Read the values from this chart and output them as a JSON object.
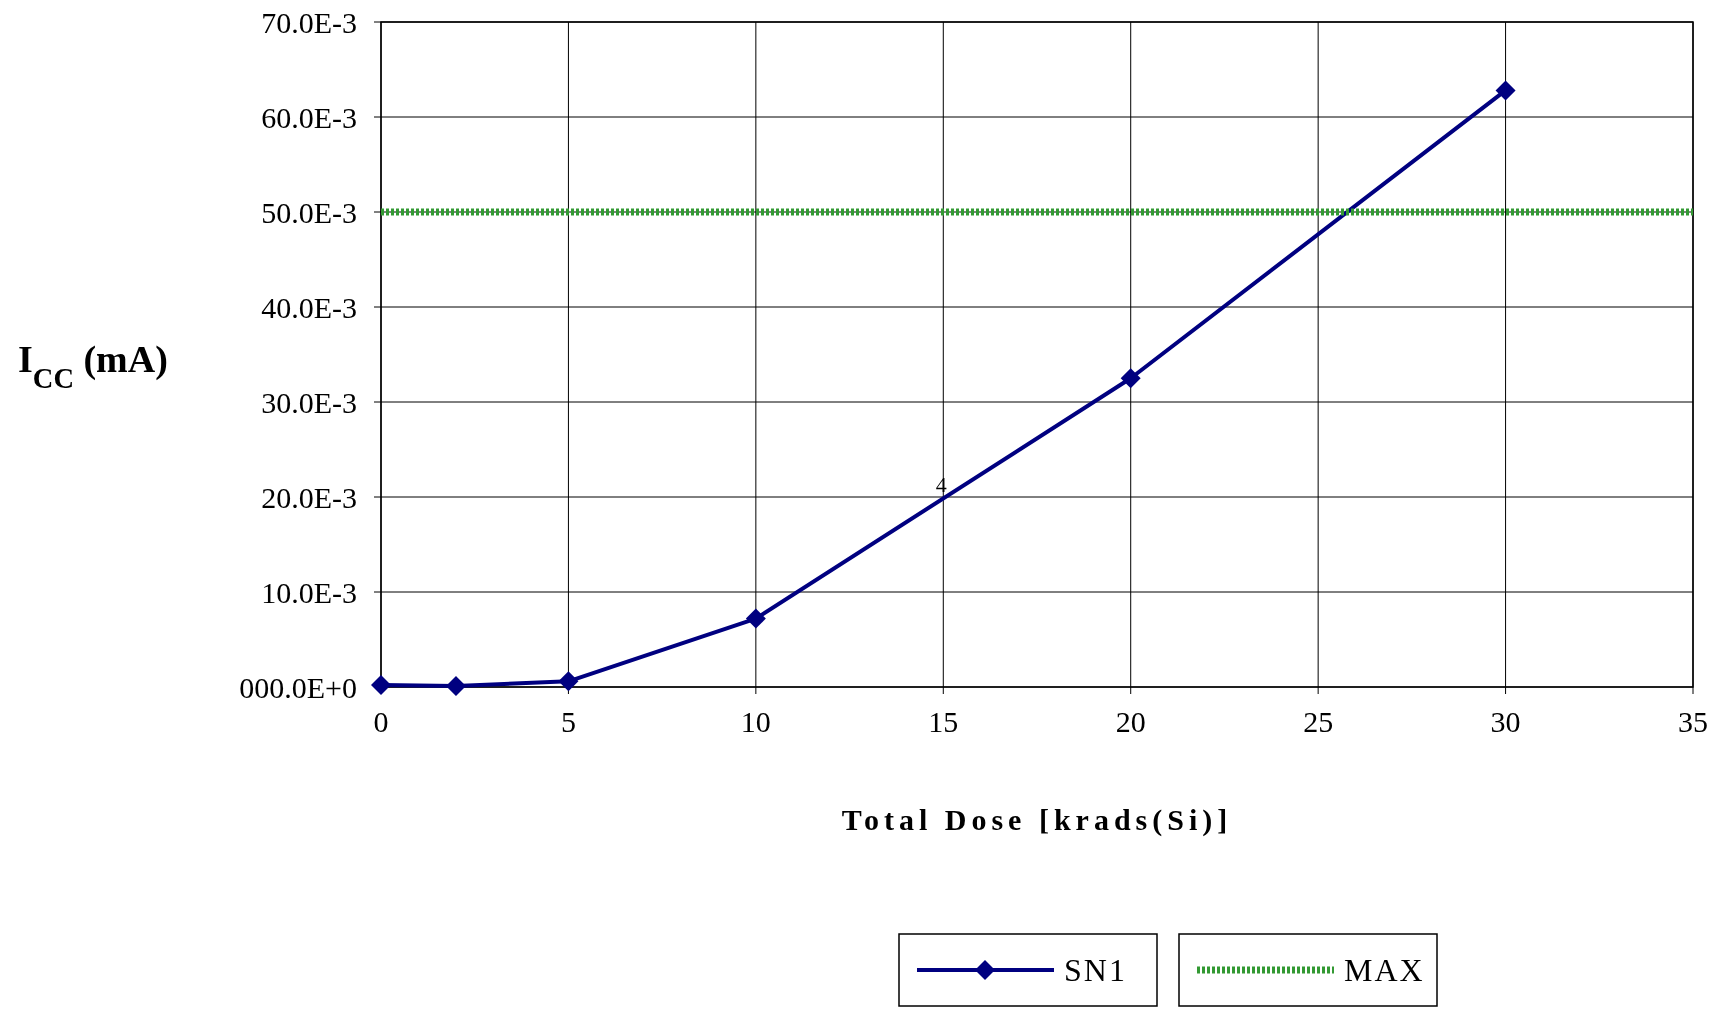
{
  "chart_data": {
    "type": "line",
    "xlabel": "Total Dose [krads(Si)]",
    "ylabel": "I$_{CC}$ (mA)",
    "xlim": [
      0,
      35
    ],
    "xticks": [
      0,
      5,
      10,
      15,
      20,
      25,
      30,
      35
    ],
    "ylim": [
      0,
      0.07
    ],
    "yticks": [
      {
        "value": 0,
        "label": "000.0E+0"
      },
      {
        "value": 0.01,
        "label": "10.0E-3"
      },
      {
        "value": 0.02,
        "label": "20.0E-3"
      },
      {
        "value": 0.03,
        "label": "30.0E-3"
      },
      {
        "value": 0.04,
        "label": "40.0E-3"
      },
      {
        "value": 0.05,
        "label": "50.0E-3"
      },
      {
        "value": 0.06,
        "label": "60.0E-3"
      },
      {
        "value": 0.07,
        "label": "70.0E-3"
      }
    ],
    "grid": true,
    "legend": "bottom",
    "series": [
      {
        "name": "SN1",
        "color": "#000080",
        "marker": "diamond",
        "line_style": "solid",
        "x": [
          0,
          2,
          5,
          10,
          20,
          30
        ],
        "values": [
          0.0002,
          0.0001,
          0.0006,
          0.0072,
          0.0325,
          0.0628
        ]
      },
      {
        "name": "MAX",
        "color": "#339933",
        "marker": "none",
        "line_style": "dotted",
        "x": [
          0,
          35
        ],
        "values": [
          0.05,
          0.05
        ]
      }
    ],
    "annotations": [
      {
        "text": "4",
        "x": 15,
        "y": 0.02
      }
    ]
  }
}
